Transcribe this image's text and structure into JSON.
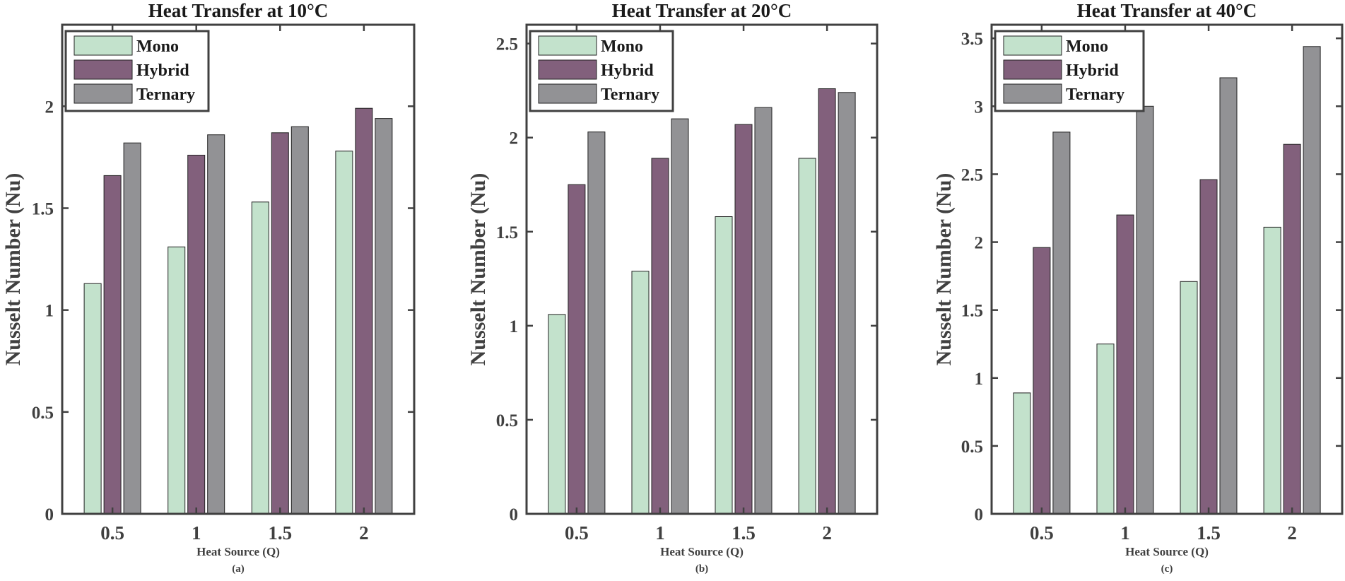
{
  "colors": {
    "Mono": "#c3e2cc",
    "Hybrid": "#82607c",
    "Ternary": "#929295"
  },
  "chart_data": [
    {
      "type": "bar",
      "title": "Heat Transfer at 10°C",
      "xlabel": "Heat Source (Q)",
      "sublabel": "(a)",
      "ylabel": "Nusselt Number (Nu)",
      "categories": [
        "0.5",
        "1",
        "1.5",
        "2"
      ],
      "ylim": [
        0,
        2.4
      ],
      "yticks": [
        0,
        0.5,
        1,
        1.5,
        2
      ],
      "ytick_labels": [
        "0",
        "0.5",
        "1",
        "1.5",
        "2"
      ],
      "legend_position": "top-left",
      "series": [
        {
          "name": "Mono",
          "values": [
            1.13,
            1.31,
            1.53,
            1.78
          ]
        },
        {
          "name": "Hybrid",
          "values": [
            1.66,
            1.76,
            1.87,
            1.99
          ]
        },
        {
          "name": "Ternary",
          "values": [
            1.82,
            1.86,
            1.9,
            1.94
          ]
        }
      ]
    },
    {
      "type": "bar",
      "title": "Heat Transfer at 20°C",
      "xlabel": "Heat Source (Q)",
      "sublabel": "(b)",
      "ylabel": "Nusselt Number (Nu)",
      "categories": [
        "0.5",
        "1",
        "1.5",
        "2"
      ],
      "ylim": [
        0,
        2.6
      ],
      "yticks": [
        0,
        0.5,
        1,
        1.5,
        2,
        2.5
      ],
      "ytick_labels": [
        "0",
        "0.5",
        "1",
        "1.5",
        "2",
        "2.5"
      ],
      "legend_position": "top-left",
      "series": [
        {
          "name": "Mono",
          "values": [
            1.06,
            1.29,
            1.58,
            1.89
          ]
        },
        {
          "name": "Hybrid",
          "values": [
            1.75,
            1.89,
            2.07,
            2.26
          ]
        },
        {
          "name": "Ternary",
          "values": [
            2.03,
            2.1,
            2.16,
            2.24
          ]
        }
      ]
    },
    {
      "type": "bar",
      "title": "Heat Transfer at 40°C",
      "xlabel": "Heat Source (Q)",
      "sublabel": "(c)",
      "ylabel": "Nusselt Number (Nu)",
      "categories": [
        "0.5",
        "1",
        "1.5",
        "2"
      ],
      "ylim": [
        0,
        3.6
      ],
      "yticks": [
        0,
        0.5,
        1,
        1.5,
        2,
        2.5,
        3,
        3.5
      ],
      "ytick_labels": [
        "0",
        "0.5",
        "1",
        "1.5",
        "2",
        "2.5",
        "3",
        "3.5"
      ],
      "legend_position": "top-left",
      "series": [
        {
          "name": "Mono",
          "values": [
            0.89,
            1.25,
            1.71,
            2.11
          ]
        },
        {
          "name": "Hybrid",
          "values": [
            1.96,
            2.2,
            2.46,
            2.72
          ]
        },
        {
          "name": "Ternary",
          "values": [
            2.81,
            3.0,
            3.21,
            3.44
          ]
        }
      ]
    }
  ]
}
